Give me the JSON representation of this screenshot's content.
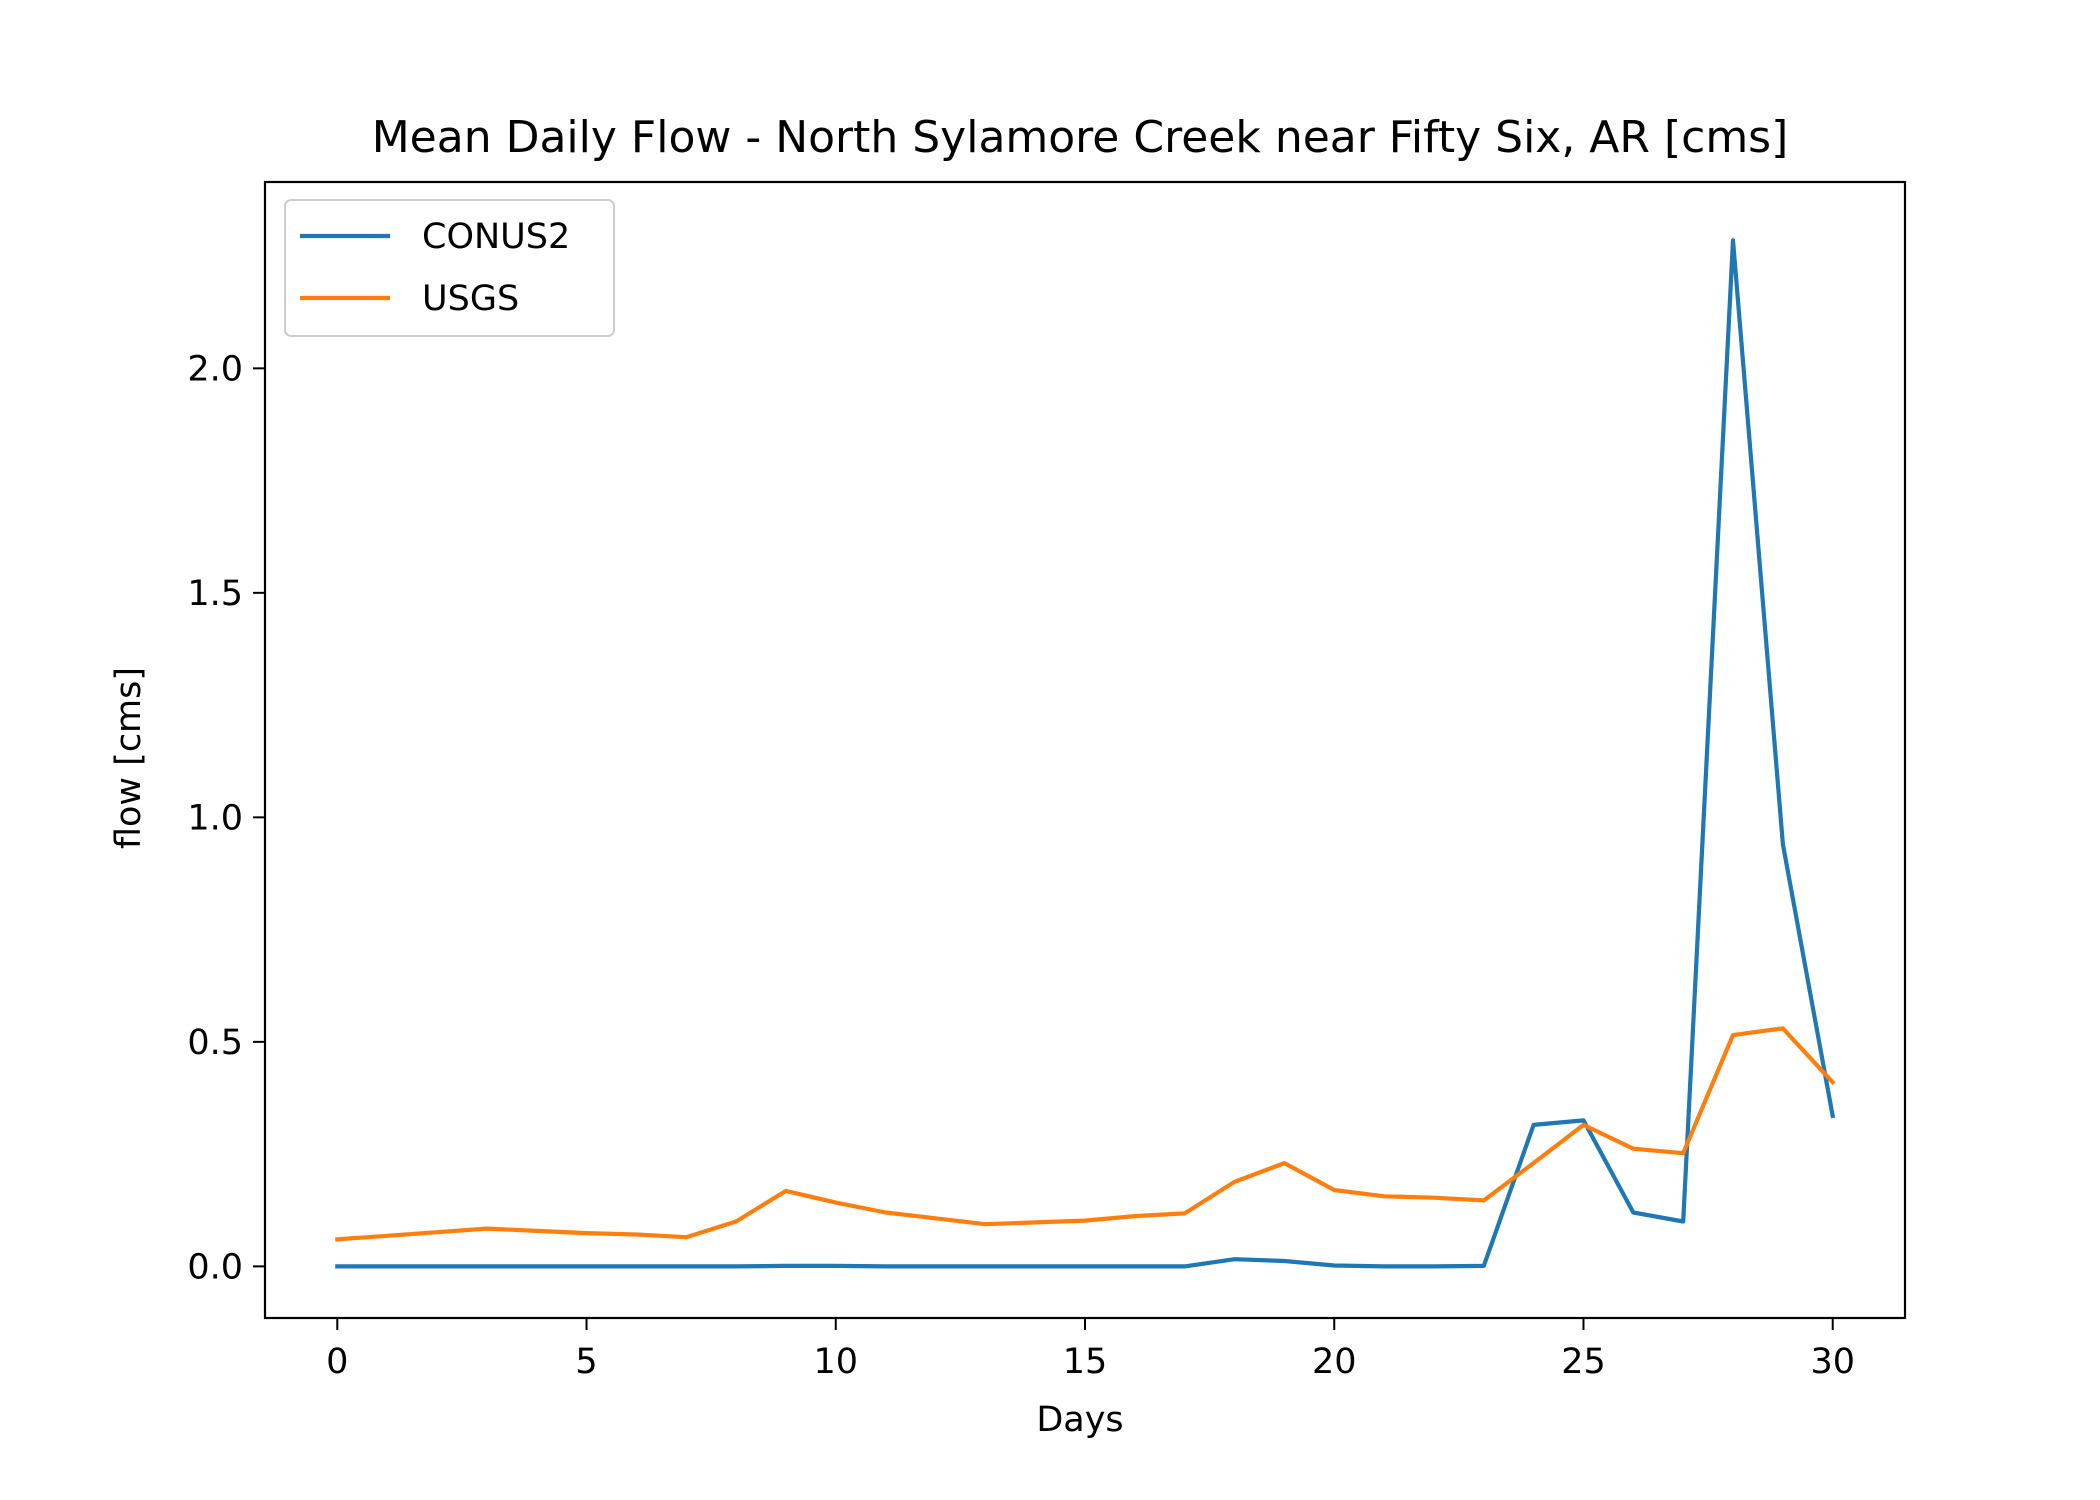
{
  "chart_data": {
    "type": "line",
    "title": "Mean Daily Flow - North Sylamore Creek near Fifty Six, AR [cms]",
    "xlabel": "Days",
    "ylabel": "flow [cms]",
    "xlim": [
      -1.45,
      31.45
    ],
    "ylim": [
      -0.115,
      2.415
    ],
    "xticks": [
      0,
      5,
      10,
      15,
      20,
      25,
      30
    ],
    "xtick_labels": [
      "0",
      "5",
      "10",
      "15",
      "20",
      "25",
      "30"
    ],
    "yticks": [
      0.0,
      0.5,
      1.0,
      1.5,
      2.0
    ],
    "ytick_labels": [
      "0.0",
      "0.5",
      "1.0",
      "1.5",
      "2.0"
    ],
    "grid": false,
    "legend_position": "top-left",
    "x": [
      0,
      1,
      2,
      3,
      4,
      5,
      6,
      7,
      8,
      9,
      10,
      11,
      12,
      13,
      14,
      15,
      16,
      17,
      18,
      19,
      20,
      21,
      22,
      23,
      24,
      25,
      26,
      27,
      28,
      29,
      30
    ],
    "series": [
      {
        "name": "CONUS2",
        "color": "#1f77b4",
        "values": [
          0.0,
          0.0,
          0.0,
          0.0,
          0.0,
          0.0,
          0.0,
          0.0,
          0.0,
          0.001,
          0.001,
          0.0,
          0.0,
          0.0,
          0.0,
          0.0,
          0.0,
          0.0,
          0.016,
          0.012,
          0.002,
          0.0,
          0.0,
          0.001,
          0.315,
          0.325,
          0.12,
          0.1,
          2.285,
          0.94,
          0.335
        ]
      },
      {
        "name": "USGS",
        "color": "#ff7f0e",
        "values": [
          0.06,
          0.068,
          0.076,
          0.084,
          0.079,
          0.074,
          0.071,
          0.065,
          0.1,
          0.168,
          0.142,
          0.12,
          0.107,
          0.094,
          0.098,
          0.102,
          0.112,
          0.118,
          0.188,
          0.23,
          0.17,
          0.156,
          0.153,
          0.147,
          0.23,
          0.315,
          0.262,
          0.252,
          0.515,
          0.53,
          0.41
        ]
      }
    ]
  }
}
